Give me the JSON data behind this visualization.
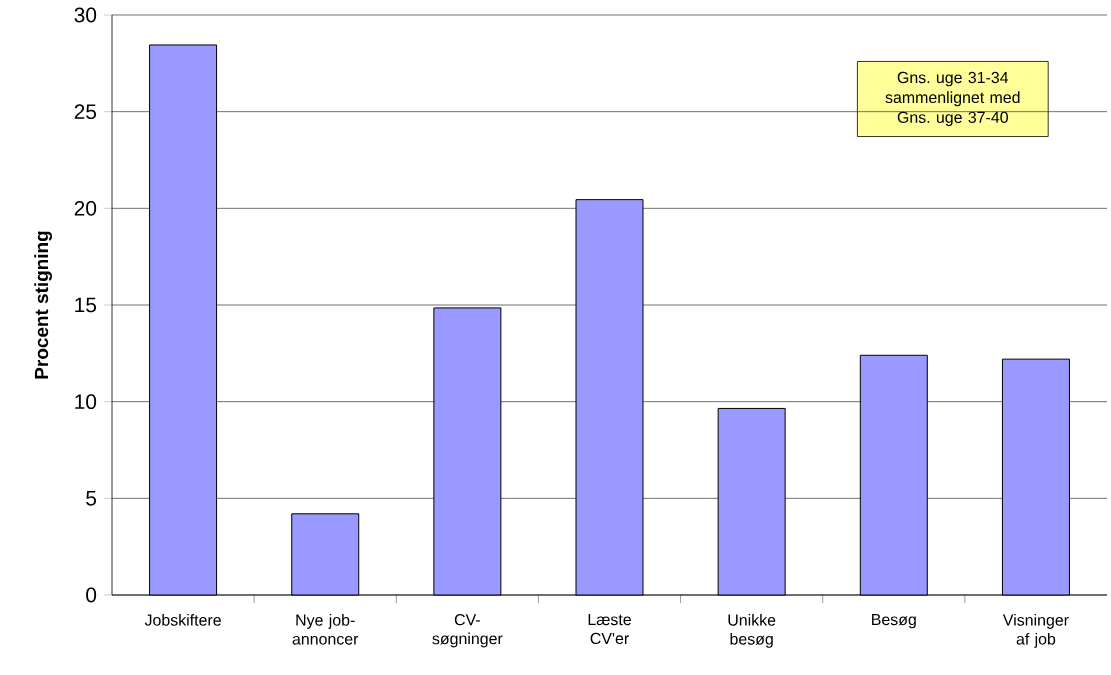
{
  "chart_data": {
    "type": "bar",
    "ylabel": "Procent stigning",
    "categories": [
      "Jobskiftere",
      "Nye job-annoncer",
      "CV-søgninger",
      "Læste CV'er",
      "Unikke besøg",
      "Besøg",
      "Visninger af job"
    ],
    "values": [
      28.45,
      4.2,
      14.85,
      20.45,
      9.65,
      12.4,
      12.2
    ],
    "color": "#9999ff",
    "ylim": [
      0,
      30
    ],
    "yticks": [
      0,
      5,
      10,
      15,
      20,
      25,
      30
    ],
    "grid": "y",
    "annotations": [
      "Gns. uge 31-34 sammenlignet med Gns. uge 37-40"
    ]
  }
}
